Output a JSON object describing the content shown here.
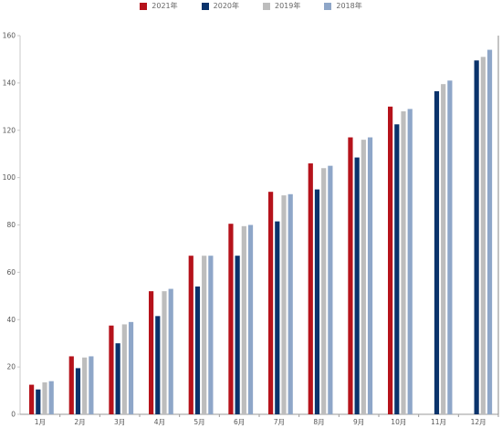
{
  "chart_data": {
    "type": "bar",
    "categories": [
      "1月",
      "2月",
      "3月",
      "4月",
      "5月",
      "6月",
      "7月",
      "8月",
      "9月",
      "10月",
      "11月",
      "12月"
    ],
    "series": [
      {
        "name": "2021年",
        "color": "#b5121b",
        "values": [
          12.5,
          24.5,
          37.5,
          52,
          67,
          80.5,
          94,
          106,
          117,
          130,
          null,
          null
        ]
      },
      {
        "name": "2020年",
        "color": "#0a336b",
        "values": [
          10.5,
          19.5,
          30,
          41.5,
          54,
          67,
          81.5,
          95,
          108.5,
          122.5,
          136.5,
          149.5
        ]
      },
      {
        "name": "2019年",
        "color": "#bdbdbd",
        "values": [
          13.5,
          24,
          38,
          52,
          67,
          79.5,
          92.5,
          104,
          116,
          128,
          139.5,
          151
        ]
      },
      {
        "name": "2018年",
        "color": "#8ea6c8",
        "values": [
          14,
          24.5,
          39,
          53,
          67,
          80,
          93,
          105,
          117,
          129,
          141,
          154
        ]
      }
    ],
    "ylim": [
      0,
      160
    ],
    "yticks": [
      0,
      20,
      40,
      60,
      80,
      100,
      120,
      140,
      160
    ],
    "legend_position": "top-center",
    "grid": false
  }
}
